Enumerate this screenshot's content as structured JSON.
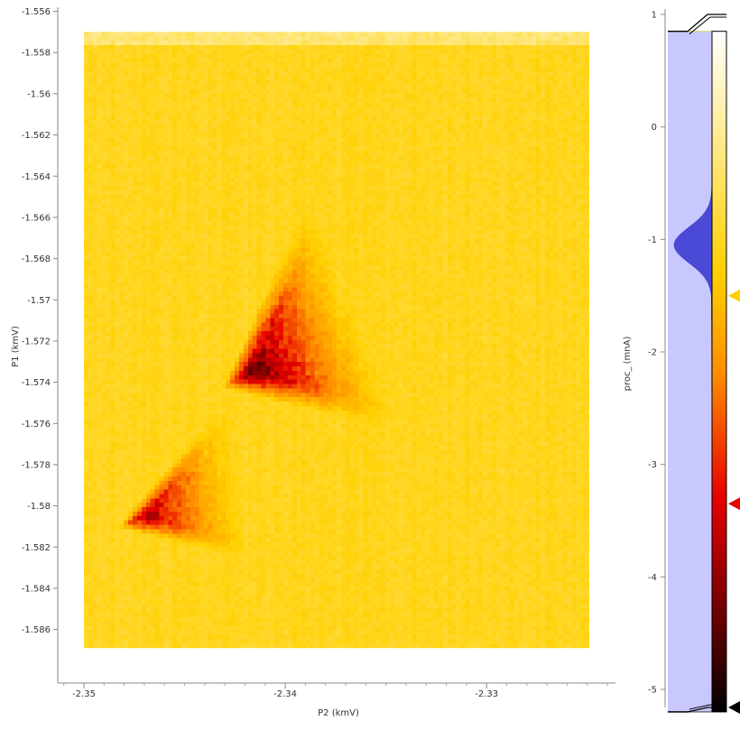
{
  "chart_data": {
    "type": "heatmap",
    "xlabel": "P2 (kmV)",
    "ylabel": "P1 (kmV)",
    "x_ticks": [
      -2.35,
      -2.34,
      -2.33
    ],
    "x_tick_labels": [
      "-2.35",
      "-2.34",
      "-2.33"
    ],
    "y_ticks": [
      -1.556,
      -1.558,
      -1.56,
      -1.562,
      -1.564,
      -1.566,
      -1.568,
      -1.57,
      -1.572,
      -1.574,
      -1.576,
      -1.578,
      -1.58,
      -1.582,
      -1.584,
      -1.586
    ],
    "y_tick_labels": [
      "-1.556",
      "-1.558",
      "-1.56",
      "-1.562",
      "-1.564",
      "-1.566",
      "-1.568",
      "-1.57",
      "-1.572",
      "-1.574",
      "-1.576",
      "-1.578",
      "-1.58",
      "-1.582",
      "-1.584",
      "-1.586"
    ],
    "xlim": [
      -2.3513,
      -2.3236
    ],
    "ylim": [
      -1.5886,
      -1.5558
    ],
    "data_extent": {
      "x": [
        -2.35,
        -2.3249
      ],
      "y": [
        -1.5869,
        -1.557
      ]
    },
    "background_value": -1.05,
    "features": [
      {
        "name": "upper triangle",
        "vertices": [
          [
            -2.3424,
            -1.5739
          ],
          [
            -2.3385,
            -1.5653
          ],
          [
            -2.3344,
            -1.5758
          ]
        ],
        "min_value": -4.6
      },
      {
        "name": "lower triangle",
        "vertices": [
          [
            -2.3477,
            -1.5808
          ],
          [
            -2.3428,
            -1.5752
          ],
          [
            -2.3417,
            -1.5823
          ]
        ],
        "min_value": -3.9
      }
    ],
    "colorbar": {
      "label": "proc_ (mnA)",
      "ticks": [
        1,
        0,
        -1,
        -2,
        -3,
        -4,
        -5
      ],
      "tick_labels": [
        "1",
        "0",
        "-1",
        "-2",
        "-3",
        "-4",
        "-5"
      ],
      "range": [
        -5.2,
        0.85
      ],
      "colormap_stops": [
        {
          "value": -5.2,
          "color": "#000000"
        },
        {
          "value": -4.1,
          "color": "#8a0000"
        },
        {
          "value": -3.3,
          "color": "#e60000"
        },
        {
          "value": -2.2,
          "color": "#ff8c00"
        },
        {
          "value": -1.3,
          "color": "#ffd000"
        },
        {
          "value": 0.85,
          "color": "#ffffff"
        }
      ],
      "markers": [
        {
          "value": -1.5,
          "color": "#ffd000"
        },
        {
          "value": -3.35,
          "color": "#e60000"
        },
        {
          "value": -5.2,
          "color": "#000000"
        }
      ],
      "histogram_peak": -1.05
    }
  }
}
